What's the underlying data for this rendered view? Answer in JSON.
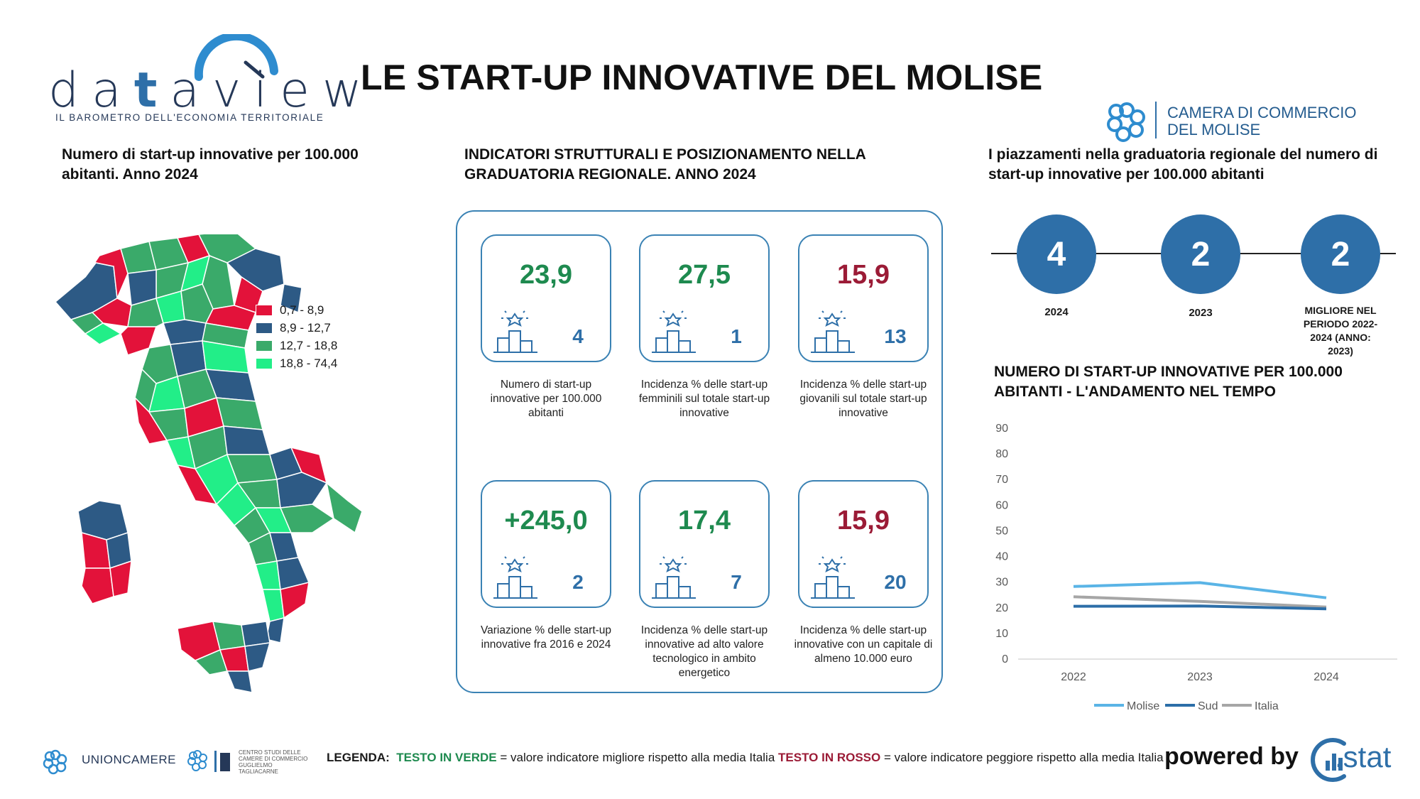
{
  "header": {
    "logo_word": "dataview",
    "logo_tagline": "IL BAROMETRO DELL'ECONOMIA TERRITORIALE",
    "title": "LE START-UP INNOVATIVE DEL MOLISE",
    "partner": "CAMERA DI COMMERCIO\nDEL MOLISE"
  },
  "map_section": {
    "title": "Numero di start-up innovative per 100.000 abitanti. Anno 2024",
    "legend": [
      {
        "label": "0,7 - 8,9",
        "color": "#e3123a"
      },
      {
        "label": "8,9 - 12,7",
        "color": "#2d5a85"
      },
      {
        "label": "12,7 - 18,8",
        "color": "#3aaa6a"
      },
      {
        "label": "18,8 - 74,4",
        "color": "#22ee88"
      }
    ]
  },
  "indicators": {
    "title": "INDICATORI STRUTTURALI E POSIZIONAMENTO NELLA GRADUATORIA REGIONALE. ANNO 2024",
    "cards": [
      {
        "value": "23,9",
        "tone": "green",
        "rank": "4",
        "description": "Numero di start-up innovative per 100.000 abitanti"
      },
      {
        "value": "27,5",
        "tone": "green",
        "rank": "1",
        "description": "Incidenza % delle start-up femminili sul totale start-up innovative"
      },
      {
        "value": "15,9",
        "tone": "red",
        "rank": "13",
        "description": "Incidenza % delle start-up giovanili sul totale start-up innovative"
      },
      {
        "value": "+245,0",
        "tone": "green",
        "rank": "2",
        "description": "Variazione % delle start-up innovative fra 2016 e 2024"
      },
      {
        "value": "17,4",
        "tone": "green",
        "rank": "7",
        "description": "Incidenza % delle start-up innovative ad alto valore tecnologico in ambito energetico"
      },
      {
        "value": "15,9",
        "tone": "red",
        "rank": "20",
        "description": "Incidenza % delle start-up innovative con un capitale di almeno 10.000 euro"
      }
    ]
  },
  "rankings": {
    "title": "I piazzamenti nella graduatoria regionale del numero di start-up innovative per 100.000 abitanti",
    "items": [
      {
        "value": "4",
        "label": "2024"
      },
      {
        "value": "2",
        "label": "2023"
      },
      {
        "value": "2",
        "label": "MIGLIORE NEL PERIODO 2022-2024 (ANNO: 2023)"
      }
    ]
  },
  "chart_data": {
    "type": "line",
    "title": "NUMERO DI START-UP INNOVATIVE PER 100.000 ABITANTI - L'ANDAMENTO NEL TEMPO",
    "x": [
      "2022",
      "2023",
      "2024"
    ],
    "ylim": [
      0,
      90
    ],
    "yticks": [
      "0",
      "10",
      "20",
      "30",
      "40",
      "50",
      "60",
      "70",
      "80",
      "90"
    ],
    "grid": false,
    "legend_position": "bottom",
    "series": [
      {
        "name": "Molise",
        "color": "#5ab4e6",
        "values": [
          28.3,
          29.8,
          23.9
        ]
      },
      {
        "name": "Sud",
        "color": "#2c6ea8",
        "values": [
          20.6,
          20.7,
          19.6
        ]
      },
      {
        "name": "Italia",
        "color": "#a6a6a6",
        "values": [
          24.3,
          22.5,
          20.3
        ]
      }
    ]
  },
  "footer": {
    "unioncamere": "UNIONCAMERE",
    "tagliacarne": "CENTRO STUDI DELLE CAMERE DI COMMERCIO GUGLIELMO TAGLIACARNE",
    "legend_label": "LEGENDA:",
    "legend_green": "TESTO IN VERDE",
    "legend_green_text": " = valore indicatore migliore rispetto alla media Italia ",
    "legend_red": "TESTO IN ROSSO",
    "legend_red_text": " = valore indicatore peggiore rispetto alla media Italia",
    "powered_by": "powered by",
    "stat_logo": ".stat"
  }
}
